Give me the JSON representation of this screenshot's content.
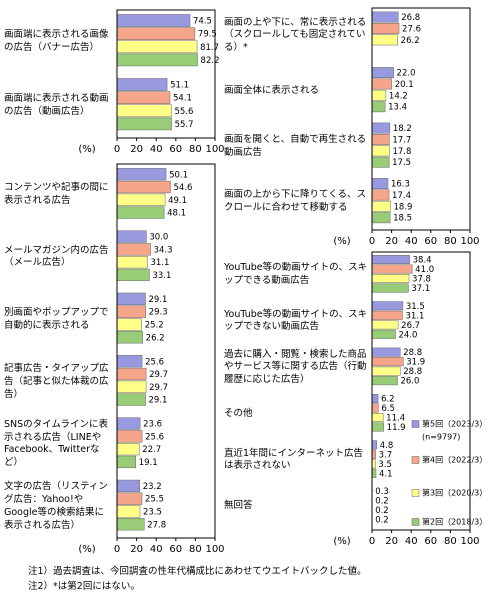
{
  "chart_data": [
    {
      "type": "bar",
      "orientation": "horizontal",
      "xlabel": "(%)",
      "xlim": [
        0,
        100
      ],
      "xticks": [
        0,
        20,
        40,
        60,
        80,
        100
      ],
      "categories": [
        "画面端に表示される画像の広告（バナー広告）",
        "画面端に表示される動画の広告（動画広告）"
      ],
      "series": [
        {
          "color": "#9999e0",
          "values": [
            74.5,
            51.1
          ],
          "value_labels": [
            "74.5",
            "51.1"
          ]
        },
        {
          "color": "#f4a58a",
          "values": [
            79.5,
            54.1
          ],
          "value_labels": [
            "79.5",
            "54.1"
          ]
        },
        {
          "color": "#ffff88",
          "values": [
            81.7,
            55.6
          ],
          "value_labels": [
            "81.7",
            "55.6"
          ]
        },
        {
          "color": "#99cc77",
          "values": [
            82.2,
            55.7
          ],
          "value_labels": [
            "82.2",
            "55.7"
          ]
        }
      ]
    },
    {
      "type": "bar",
      "orientation": "horizontal",
      "xlabel": "(%)",
      "xlim": [
        0,
        100
      ],
      "xticks": [
        0,
        20,
        40,
        60,
        80,
        100
      ],
      "categories": [
        "コンテンツや記事の間に表示される広告",
        "メールマガジン内の広告（メール広告）",
        "別画面やポップアップで自動的に表示される",
        "記事広告・タイアップ広告（記事と似た体裁の広告）",
        "SNSのタイムラインに表示される広告（LINEやFacebook、Twitterなど）",
        "文字の広告（リスティング広告：Yahoo!やGoogle等の検索結果に表示される広告）"
      ],
      "series": [
        {
          "color": "#9999e0",
          "values": [
            50.1,
            30.0,
            29.1,
            25.6,
            23.6,
            23.2
          ],
          "value_labels": [
            "50.1",
            "30.0",
            "29.1",
            "25.6",
            "23.6",
            "23.2"
          ]
        },
        {
          "color": "#f4a58a",
          "values": [
            54.6,
            34.3,
            29.3,
            29.7,
            25.6,
            25.5
          ],
          "value_labels": [
            "54.6",
            "34.3",
            "29.3",
            "29.7",
            "25.6",
            "25.5"
          ]
        },
        {
          "color": "#ffff88",
          "values": [
            49.1,
            31.1,
            25.2,
            29.7,
            22.7,
            23.5
          ],
          "value_labels": [
            "49.1",
            "31.1",
            "25.2",
            "29.7",
            "22.7",
            "23.5"
          ]
        },
        {
          "color": "#99cc77",
          "values": [
            48.1,
            33.1,
            26.2,
            29.1,
            19.1,
            27.8
          ],
          "value_labels": [
            "48.1",
            "33.1",
            "26.2",
            "29.1",
            "19.1",
            "27.8"
          ]
        }
      ]
    },
    {
      "type": "bar",
      "orientation": "horizontal",
      "xlabel": "(%)",
      "xlim": [
        0,
        100
      ],
      "xticks": [
        0,
        20,
        40,
        60,
        80,
        100
      ],
      "categories": [
        "画面の上や下に、常に表示される（スクロールしても固定されている）*",
        "画面全体に表示される",
        "画面を開くと、自動で再生される動画広告",
        "画面の上から下に降りてくる、スクロールに合わせて移動する"
      ],
      "series": [
        {
          "color": "#9999e0",
          "values": [
            26.8,
            22.0,
            18.2,
            16.3
          ],
          "value_labels": [
            "26.8",
            "22.0",
            "18.2",
            "16.3"
          ]
        },
        {
          "color": "#f4a58a",
          "values": [
            27.6,
            20.1,
            17.7,
            17.4
          ],
          "value_labels": [
            "27.6",
            "20.1",
            "17.7",
            "17.4"
          ]
        },
        {
          "color": "#ffff88",
          "values": [
            26.2,
            14.2,
            17.8,
            18.9
          ],
          "value_labels": [
            "26.2",
            "14.2",
            "17.8",
            "18.9"
          ]
        },
        {
          "color": "#99cc77",
          "values": [
            null,
            13.4,
            17.5,
            18.5
          ],
          "value_labels": [
            null,
            "13.4",
            "17.5",
            "18.5"
          ]
        }
      ]
    },
    {
      "type": "bar",
      "orientation": "horizontal",
      "xlabel": "(%)",
      "xlim": [
        0,
        100
      ],
      "xticks": [
        0,
        20,
        40,
        60,
        80,
        100
      ],
      "legend": "right",
      "legend_note": "(n=9797)",
      "categories": [
        "YouTube等の動画サイトの、スキップできる動画広告",
        "YouTube等の動画サイトの、スキップできない動画広告",
        "過去に購入・閲覧・検索した商品やサービス等に関する広告（行動履歴に応じた広告）",
        "その他",
        "直近1年間にインターネット広告は表示されない",
        "無回答"
      ],
      "series": [
        {
          "name": "第5回（2023/3）",
          "color": "#9999e0",
          "values": [
            38.4,
            31.5,
            28.8,
            6.2,
            4.8,
            0.3
          ],
          "value_labels": [
            "38.4",
            "31.5",
            "28.8",
            "6.2",
            "4.8",
            "0.3"
          ]
        },
        {
          "name": "第4回（2022/3）",
          "color": "#f4a58a",
          "values": [
            41.0,
            31.1,
            31.9,
            6.5,
            3.7,
            0.2
          ],
          "value_labels": [
            "41.0",
            "31.1",
            "31.9",
            "6.5",
            "3.7",
            "0.2"
          ]
        },
        {
          "name": "第3回（2020/3）",
          "color": "#ffff88",
          "values": [
            37.8,
            26.7,
            28.8,
            11.4,
            3.5,
            0.2
          ],
          "value_labels": [
            "37.8",
            "26.7",
            "28.8",
            "11.4",
            "3.5",
            "0.2"
          ]
        },
        {
          "name": "第2回（2018/3）",
          "color": "#99cc77",
          "values": [
            37.1,
            24.0,
            26.0,
            11.9,
            4.1,
            0.2
          ],
          "value_labels": [
            "37.1",
            "24.0",
            "26.0",
            "11.9",
            "4.1",
            "0.2"
          ]
        }
      ]
    }
  ],
  "notes": [
    "注1）過去調査は、今回調査の性年代構成比にあわせてウエイトバックした値。",
    "注2）*は第2回にはない。"
  ]
}
